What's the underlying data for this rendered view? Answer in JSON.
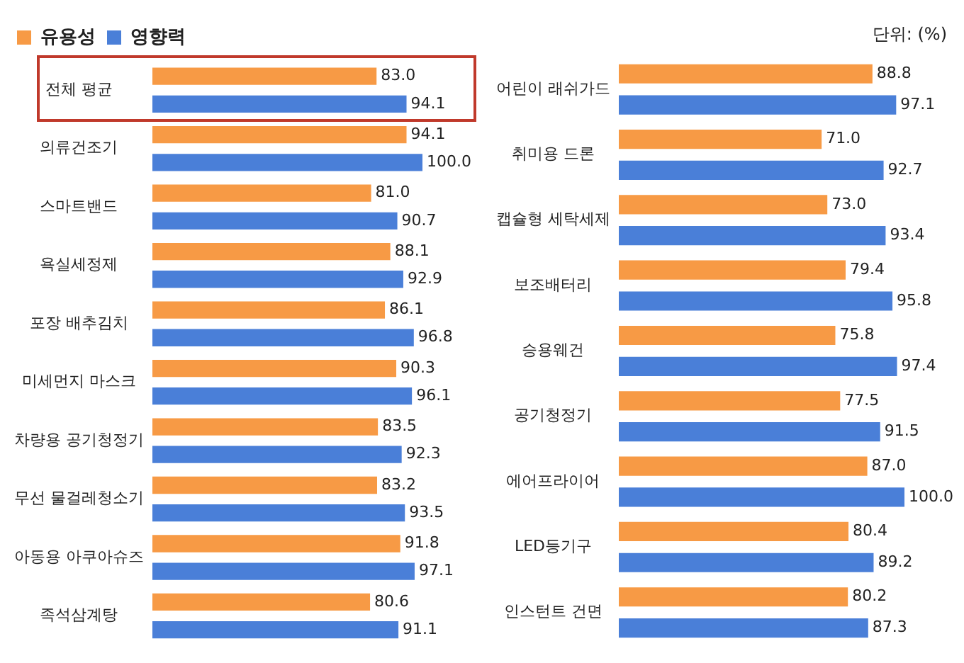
{
  "chart_data": [
    {
      "type": "bar",
      "orientation": "horizontal",
      "categories": [
        "전체 평균",
        "의류건조기",
        "스마트밴드",
        "욕실세정제",
        "포장 배추김치",
        "미세먼지 마스크",
        "차량용 공기청정기",
        "무선 물걸레청소기",
        "아동용 아쿠아슈즈",
        "족석삼계탕"
      ],
      "series": [
        {
          "name": "유용성",
          "color": "#f79a45",
          "values": [
            83.0,
            94.1,
            81.0,
            88.1,
            86.1,
            90.3,
            83.5,
            83.2,
            91.8,
            80.6
          ],
          "value_labels": [
            "83.0",
            "94.1",
            "81.0",
            "88.1",
            "86.1",
            "90.3",
            "83.5",
            "83.2",
            "91.8",
            "80.6"
          ]
        },
        {
          "name": "영향력",
          "color": "#4a7fd8",
          "values": [
            94.1,
            100.0,
            90.7,
            92.9,
            96.8,
            96.1,
            92.3,
            93.5,
            97.1,
            91.1
          ],
          "value_labels": [
            "94.1",
            "100.0",
            "90.7",
            "92.9",
            "96.8",
            "96.1",
            "92.3",
            "93.5",
            "97.1",
            "91.1"
          ]
        }
      ],
      "tick_labels": "y",
      "legend": "top left"
    },
    {
      "type": "bar",
      "orientation": "horizontal",
      "categories": [
        "어린이 래쉬가드",
        "취미용 드론",
        "캡슐형 세탁세제",
        "보조배터리",
        "승용웨건",
        "공기청정기",
        "에어프라이어",
        "LED등기구",
        "인스턴트 건면"
      ],
      "series": [
        {
          "color": "#f79a45",
          "values": [
            88.8,
            71.0,
            73.0,
            79.4,
            75.8,
            77.5,
            87.0,
            80.4,
            80.2
          ],
          "value_labels": [
            "88.8",
            "71.0",
            "73.0",
            "79.4",
            "75.8",
            "77.5",
            "87.0",
            "80.4",
            "80.2"
          ]
        },
        {
          "color": "#4a7fd8",
          "values": [
            97.1,
            92.7,
            93.4,
            95.8,
            97.4,
            91.5,
            100.0,
            89.2,
            87.3
          ],
          "value_labels": [
            "97.1",
            "92.7",
            "93.4",
            "95.8",
            "97.4",
            "91.5",
            "100.0",
            "89.2",
            "87.3"
          ]
        }
      ],
      "tick_labels": "y",
      "legend": false,
      "annotations": [
        "단위: (%)"
      ]
    }
  ]
}
